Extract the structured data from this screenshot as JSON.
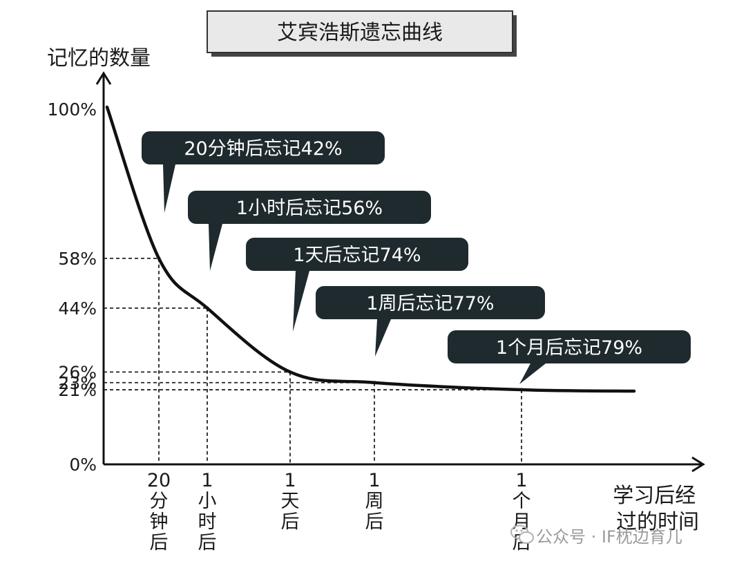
{
  "chart_data": {
    "type": "line",
    "title": "艾宾浩斯遗忘曲线",
    "ylabel": "记忆的数量",
    "xlabel_lines": [
      "学习后经",
      "过的时间"
    ],
    "ylim": [
      0,
      100
    ],
    "y_ticks": [
      {
        "value": 0,
        "label": "0%"
      },
      {
        "value": 21,
        "label": "21%"
      },
      {
        "value": 23,
        "label": "23%"
      },
      {
        "value": 26,
        "label": "26%"
      },
      {
        "value": 44,
        "label": "44%"
      },
      {
        "value": 58,
        "label": "58%"
      },
      {
        "value": 100,
        "label": "100%"
      }
    ],
    "points": [
      {
        "x_label_lines": [
          "20",
          "分",
          "钟",
          "后"
        ],
        "y": 58,
        "annotation": "20分钟后忘记42%"
      },
      {
        "x_label_lines": [
          "1",
          "小",
          "时",
          "后"
        ],
        "y": 44,
        "annotation": "1小时后忘记56%"
      },
      {
        "x_label_lines": [
          "1",
          "天",
          "后"
        ],
        "y": 26,
        "annotation": "1天后忘记74%"
      },
      {
        "x_label_lines": [
          "1",
          "周",
          "后"
        ],
        "y": 23,
        "annotation": "1周后忘记77%"
      },
      {
        "x_label_lines": [
          "1",
          "个",
          "月",
          "后"
        ],
        "y": 21,
        "annotation": "1个月后忘记79%"
      }
    ],
    "start_value": 100,
    "grid": false,
    "guide_lines": "dashed",
    "colors": {
      "curve": "#111111",
      "axis": "#111111",
      "guide": "#222222",
      "bubble": "#1f2a2e",
      "bubble_text": "#ffffff",
      "title_box": "#e9e9e9"
    }
  },
  "watermark": {
    "text": "公众号 · IF枕边育儿",
    "icon": "wechat-icon"
  }
}
